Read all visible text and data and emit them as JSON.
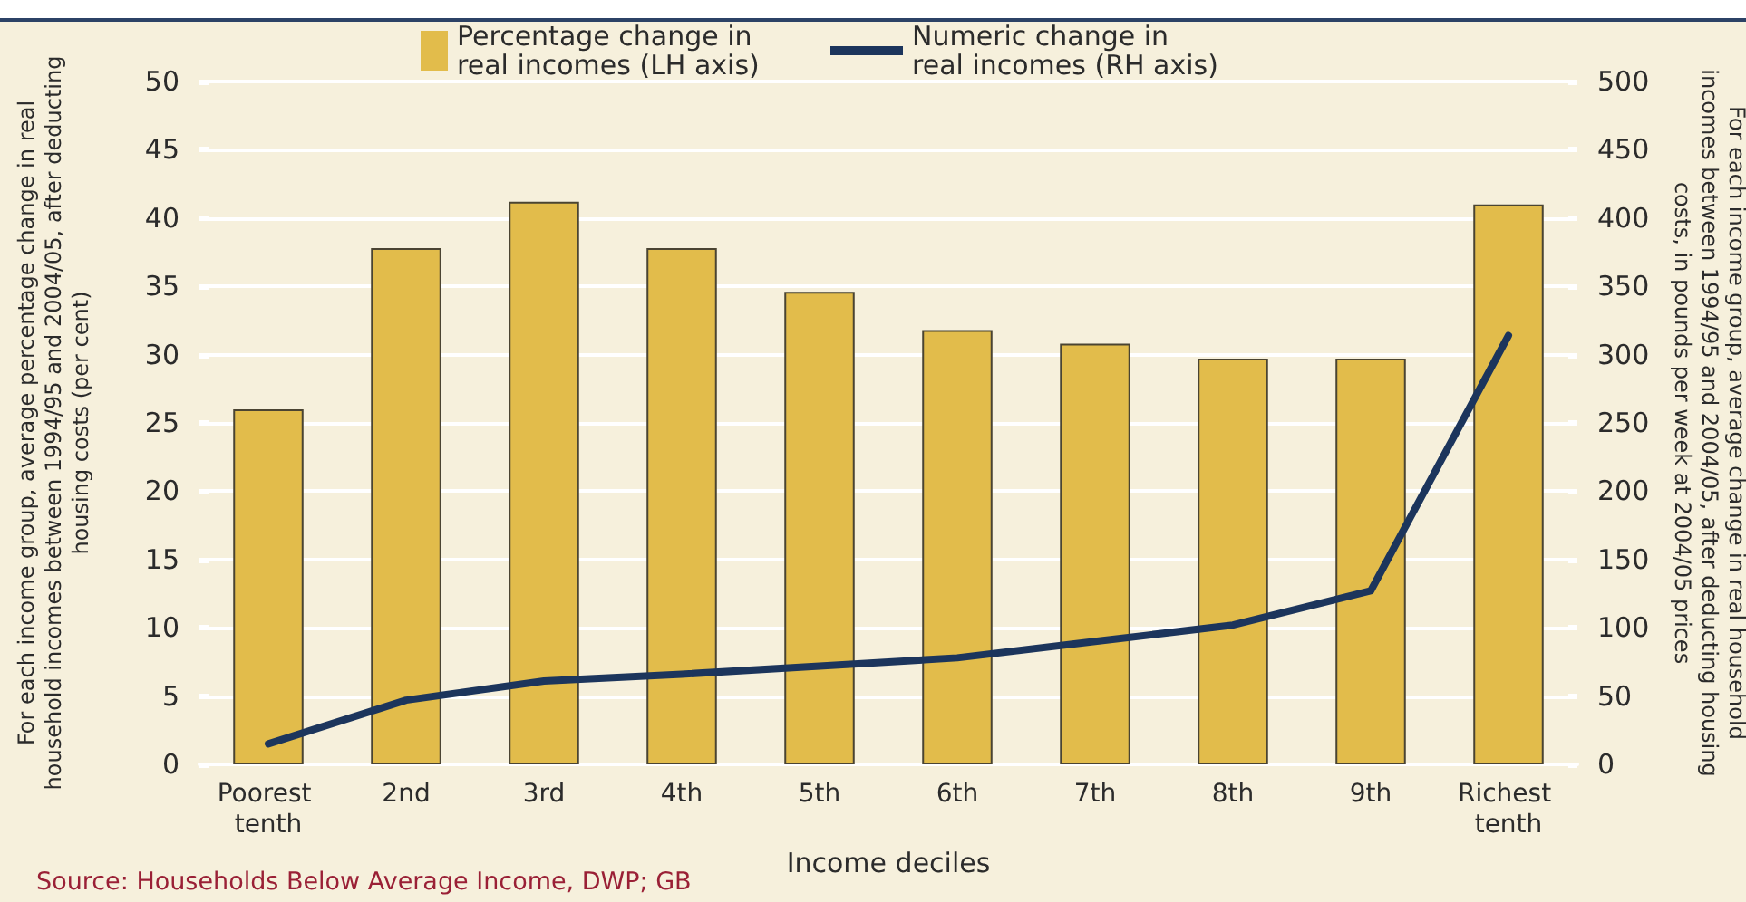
{
  "chart_data": {
    "type": "bar",
    "xlabel": "Income deciles",
    "ylabel": "For each income group, average percentage change in real household incomes between 1994/95 and 2004/05, after deducting housing costs (per cent)",
    "y2label": "For each income group, average change in real household incomes between 1994/95 and 2004/05, after deducting housing costs, in pounds per week at 2004/05 prices",
    "categories": [
      "Poorest tenth",
      "2nd",
      "3rd",
      "4th",
      "5th",
      "6th",
      "7th",
      "8th",
      "9th",
      "Richest tenth"
    ],
    "series": [
      {
        "name": "Percentage change in real incomes (LH axis)",
        "type": "bar",
        "color": "#e2bc4b",
        "values": [
          26,
          37.8,
          41.2,
          37.8,
          34.6,
          31.8,
          30.8,
          29.7,
          29.7,
          41
        ]
      },
      {
        "name": "Numeric change in real incomes (RH axis)",
        "type": "line",
        "axis": "y2",
        "color": "#1c355c",
        "values": [
          15,
          47,
          61,
          66,
          72,
          78,
          90,
          102,
          127,
          314
        ]
      }
    ],
    "ylim": [
      0,
      50
    ],
    "yticks": [
      0,
      5,
      10,
      15,
      20,
      25,
      30,
      35,
      40,
      45,
      50
    ],
    "y2lim": [
      0,
      500
    ],
    "y2ticks": [
      0,
      50,
      100,
      150,
      200,
      250,
      300,
      350,
      400,
      450,
      500
    ],
    "grid": "y",
    "legend": "top",
    "marker": "none",
    "line_style": "solid",
    "annotations": [
      "Source: Households Below Average Income, DWP; GB"
    ]
  }
}
